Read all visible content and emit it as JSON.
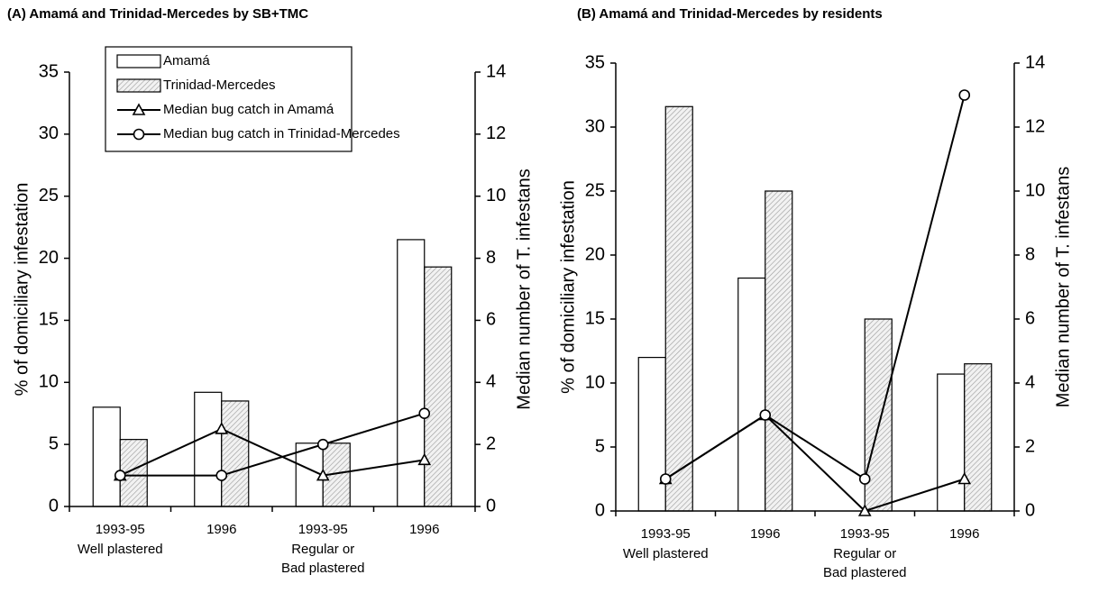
{
  "chart_data": [
    {
      "type": "bar-line",
      "title": "(A) Amamá and Trinidad-Mercedes by SB+TMC",
      "ylabel": "% of domiciliary infestation",
      "y2label": "Median number of T. infestans",
      "categories": [
        "1993-95",
        "1996",
        "1993-95",
        "1996"
      ],
      "groups": [
        [
          "Well plastered"
        ],
        [
          "Regular or",
          "Bad plastered"
        ]
      ],
      "ylim": [
        0,
        35
      ],
      "yticks": [
        0,
        5,
        10,
        15,
        20,
        25,
        30,
        35
      ],
      "y2lim": [
        0,
        14
      ],
      "y2ticks": [
        0,
        2,
        4,
        6,
        8,
        10,
        12,
        14
      ],
      "legend": "top",
      "series": [
        {
          "name": "Amamá",
          "type": "bar",
          "color": "#ffffff",
          "values": [
            8,
            9.2,
            5.1,
            21.5
          ]
        },
        {
          "name": "Trinidad-Mercedes",
          "type": "bar",
          "color": "hatch",
          "values": [
            5.4,
            8.5,
            5.1,
            19.3
          ]
        },
        {
          "name": "Median bug catch  in Amamá",
          "type": "line",
          "axis": "y2",
          "marker": "triangle",
          "color": "#000000",
          "values": [
            1,
            2.5,
            1,
            1.5
          ]
        },
        {
          "name": "Median bug catch in Trinidad-Mercedes",
          "type": "line",
          "axis": "y2",
          "marker": "circle",
          "color": "#000000",
          "values": [
            1,
            1,
            2,
            3
          ]
        }
      ]
    },
    {
      "type": "bar-line",
      "title": "(B) Amamá and Trinidad-Mercedes by residents",
      "ylabel": "% of domiciliary infestation",
      "y2label": "Median number of T. infestans",
      "categories": [
        "1993-95",
        "1996",
        "1993-95",
        "1996"
      ],
      "groups": [
        [
          "Well plastered"
        ],
        [
          "Regular or",
          "Bad plastered"
        ]
      ],
      "ylim": [
        0,
        35
      ],
      "yticks": [
        0,
        5,
        10,
        15,
        20,
        25,
        30,
        35
      ],
      "y2lim": [
        0,
        14
      ],
      "y2ticks": [
        0,
        2,
        4,
        6,
        8,
        10,
        12,
        14
      ],
      "series": [
        {
          "type": "bar",
          "color": "#ffffff",
          "values": [
            12,
            18.2,
            0,
            10.7
          ]
        },
        {
          "type": "bar",
          "color": "hatch",
          "values": [
            31.6,
            25,
            15,
            11.5
          ]
        },
        {
          "type": "line",
          "axis": "y2",
          "marker": "triangle",
          "color": "#000000",
          "values": [
            1,
            3,
            0,
            1
          ]
        },
        {
          "type": "line",
          "axis": "y2",
          "marker": "circle",
          "color": "#000000",
          "values": [
            1,
            3,
            1,
            13
          ]
        }
      ]
    }
  ]
}
